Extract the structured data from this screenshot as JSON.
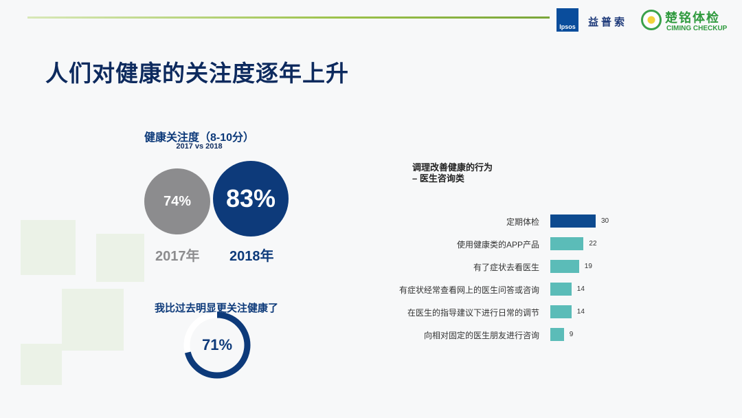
{
  "header": {
    "title": "人们对健康的关注度逐年上升",
    "ipsos_logo": "Ipsos",
    "ipsos_cn": "益普索",
    "ciming_cn": "楚铭体检",
    "ciming_en": "CIMING CHECKUP"
  },
  "attention": {
    "title": "健康关注度（8-10分）",
    "subtitle": "2017 vs 2018",
    "items": [
      {
        "year": "2017年",
        "value": "74%",
        "color": "#8c8c8e"
      },
      {
        "year": "2018年",
        "value": "83%",
        "color": "#0d3a7a"
      }
    ]
  },
  "more_attention": {
    "title": "我比过去明显更关注健康了",
    "value": "71%",
    "fraction": 0.71,
    "color": "#0d3a7a"
  },
  "chart_data": {
    "type": "bar",
    "orientation": "horizontal",
    "title": "调理改善健康的行为",
    "subtitle": "– 医生咨询类",
    "categories": [
      "定期体检",
      "使用健康类的APP产品",
      "有了症状去看医生",
      "有症状经常查看网上的医生问答或咨询",
      "在医生的指导建议下进行日常的调节",
      "向相对固定的医生朋友进行咨询"
    ],
    "values": [
      30,
      22,
      19,
      14,
      14,
      9
    ],
    "colors": [
      "#0d4a8f",
      "#5bbcb8",
      "#5bbcb8",
      "#5bbcb8",
      "#5bbcb8",
      "#5bbcb8"
    ]
  }
}
